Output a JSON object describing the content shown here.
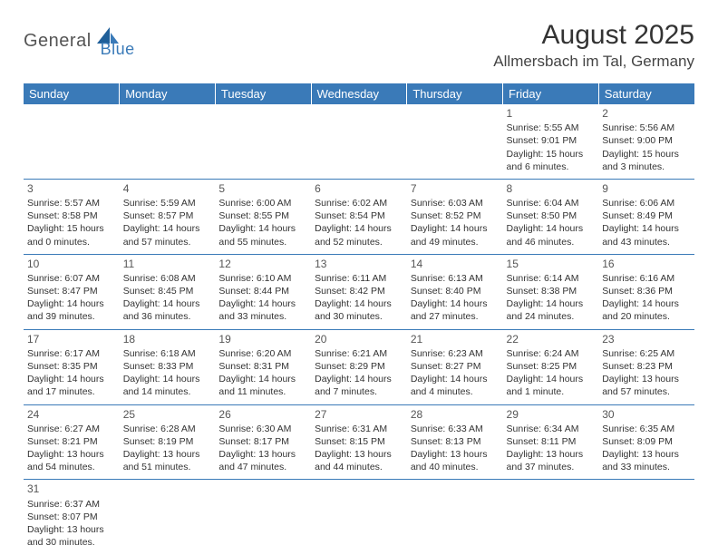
{
  "colors": {
    "header_bg": "#3a7ab8",
    "header_text": "#ffffff",
    "row_border": "#3a7ab8",
    "body_text": "#333333",
    "logo_blue": "#3a7ab8",
    "page_bg": "#ffffff"
  },
  "logo": {
    "text1": "General",
    "text2": "Blue"
  },
  "title": "August 2025",
  "location": "Allmersbach im Tal, Germany",
  "weekdays": [
    "Sunday",
    "Monday",
    "Tuesday",
    "Wednesday",
    "Thursday",
    "Friday",
    "Saturday"
  ],
  "weeks": [
    [
      null,
      null,
      null,
      null,
      null,
      {
        "n": "1",
        "sr": "Sunrise: 5:55 AM",
        "ss": "Sunset: 9:01 PM",
        "d1": "Daylight: 15 hours",
        "d2": "and 6 minutes."
      },
      {
        "n": "2",
        "sr": "Sunrise: 5:56 AM",
        "ss": "Sunset: 9:00 PM",
        "d1": "Daylight: 15 hours",
        "d2": "and 3 minutes."
      }
    ],
    [
      {
        "n": "3",
        "sr": "Sunrise: 5:57 AM",
        "ss": "Sunset: 8:58 PM",
        "d1": "Daylight: 15 hours",
        "d2": "and 0 minutes."
      },
      {
        "n": "4",
        "sr": "Sunrise: 5:59 AM",
        "ss": "Sunset: 8:57 PM",
        "d1": "Daylight: 14 hours",
        "d2": "and 57 minutes."
      },
      {
        "n": "5",
        "sr": "Sunrise: 6:00 AM",
        "ss": "Sunset: 8:55 PM",
        "d1": "Daylight: 14 hours",
        "d2": "and 55 minutes."
      },
      {
        "n": "6",
        "sr": "Sunrise: 6:02 AM",
        "ss": "Sunset: 8:54 PM",
        "d1": "Daylight: 14 hours",
        "d2": "and 52 minutes."
      },
      {
        "n": "7",
        "sr": "Sunrise: 6:03 AM",
        "ss": "Sunset: 8:52 PM",
        "d1": "Daylight: 14 hours",
        "d2": "and 49 minutes."
      },
      {
        "n": "8",
        "sr": "Sunrise: 6:04 AM",
        "ss": "Sunset: 8:50 PM",
        "d1": "Daylight: 14 hours",
        "d2": "and 46 minutes."
      },
      {
        "n": "9",
        "sr": "Sunrise: 6:06 AM",
        "ss": "Sunset: 8:49 PM",
        "d1": "Daylight: 14 hours",
        "d2": "and 43 minutes."
      }
    ],
    [
      {
        "n": "10",
        "sr": "Sunrise: 6:07 AM",
        "ss": "Sunset: 8:47 PM",
        "d1": "Daylight: 14 hours",
        "d2": "and 39 minutes."
      },
      {
        "n": "11",
        "sr": "Sunrise: 6:08 AM",
        "ss": "Sunset: 8:45 PM",
        "d1": "Daylight: 14 hours",
        "d2": "and 36 minutes."
      },
      {
        "n": "12",
        "sr": "Sunrise: 6:10 AM",
        "ss": "Sunset: 8:44 PM",
        "d1": "Daylight: 14 hours",
        "d2": "and 33 minutes."
      },
      {
        "n": "13",
        "sr": "Sunrise: 6:11 AM",
        "ss": "Sunset: 8:42 PM",
        "d1": "Daylight: 14 hours",
        "d2": "and 30 minutes."
      },
      {
        "n": "14",
        "sr": "Sunrise: 6:13 AM",
        "ss": "Sunset: 8:40 PM",
        "d1": "Daylight: 14 hours",
        "d2": "and 27 minutes."
      },
      {
        "n": "15",
        "sr": "Sunrise: 6:14 AM",
        "ss": "Sunset: 8:38 PM",
        "d1": "Daylight: 14 hours",
        "d2": "and 24 minutes."
      },
      {
        "n": "16",
        "sr": "Sunrise: 6:16 AM",
        "ss": "Sunset: 8:36 PM",
        "d1": "Daylight: 14 hours",
        "d2": "and 20 minutes."
      }
    ],
    [
      {
        "n": "17",
        "sr": "Sunrise: 6:17 AM",
        "ss": "Sunset: 8:35 PM",
        "d1": "Daylight: 14 hours",
        "d2": "and 17 minutes."
      },
      {
        "n": "18",
        "sr": "Sunrise: 6:18 AM",
        "ss": "Sunset: 8:33 PM",
        "d1": "Daylight: 14 hours",
        "d2": "and 14 minutes."
      },
      {
        "n": "19",
        "sr": "Sunrise: 6:20 AM",
        "ss": "Sunset: 8:31 PM",
        "d1": "Daylight: 14 hours",
        "d2": "and 11 minutes."
      },
      {
        "n": "20",
        "sr": "Sunrise: 6:21 AM",
        "ss": "Sunset: 8:29 PM",
        "d1": "Daylight: 14 hours",
        "d2": "and 7 minutes."
      },
      {
        "n": "21",
        "sr": "Sunrise: 6:23 AM",
        "ss": "Sunset: 8:27 PM",
        "d1": "Daylight: 14 hours",
        "d2": "and 4 minutes."
      },
      {
        "n": "22",
        "sr": "Sunrise: 6:24 AM",
        "ss": "Sunset: 8:25 PM",
        "d1": "Daylight: 14 hours",
        "d2": "and 1 minute."
      },
      {
        "n": "23",
        "sr": "Sunrise: 6:25 AM",
        "ss": "Sunset: 8:23 PM",
        "d1": "Daylight: 13 hours",
        "d2": "and 57 minutes."
      }
    ],
    [
      {
        "n": "24",
        "sr": "Sunrise: 6:27 AM",
        "ss": "Sunset: 8:21 PM",
        "d1": "Daylight: 13 hours",
        "d2": "and 54 minutes."
      },
      {
        "n": "25",
        "sr": "Sunrise: 6:28 AM",
        "ss": "Sunset: 8:19 PM",
        "d1": "Daylight: 13 hours",
        "d2": "and 51 minutes."
      },
      {
        "n": "26",
        "sr": "Sunrise: 6:30 AM",
        "ss": "Sunset: 8:17 PM",
        "d1": "Daylight: 13 hours",
        "d2": "and 47 minutes."
      },
      {
        "n": "27",
        "sr": "Sunrise: 6:31 AM",
        "ss": "Sunset: 8:15 PM",
        "d1": "Daylight: 13 hours",
        "d2": "and 44 minutes."
      },
      {
        "n": "28",
        "sr": "Sunrise: 6:33 AM",
        "ss": "Sunset: 8:13 PM",
        "d1": "Daylight: 13 hours",
        "d2": "and 40 minutes."
      },
      {
        "n": "29",
        "sr": "Sunrise: 6:34 AM",
        "ss": "Sunset: 8:11 PM",
        "d1": "Daylight: 13 hours",
        "d2": "and 37 minutes."
      },
      {
        "n": "30",
        "sr": "Sunrise: 6:35 AM",
        "ss": "Sunset: 8:09 PM",
        "d1": "Daylight: 13 hours",
        "d2": "and 33 minutes."
      }
    ],
    [
      {
        "n": "31",
        "sr": "Sunrise: 6:37 AM",
        "ss": "Sunset: 8:07 PM",
        "d1": "Daylight: 13 hours",
        "d2": "and 30 minutes."
      },
      null,
      null,
      null,
      null,
      null,
      null
    ]
  ]
}
